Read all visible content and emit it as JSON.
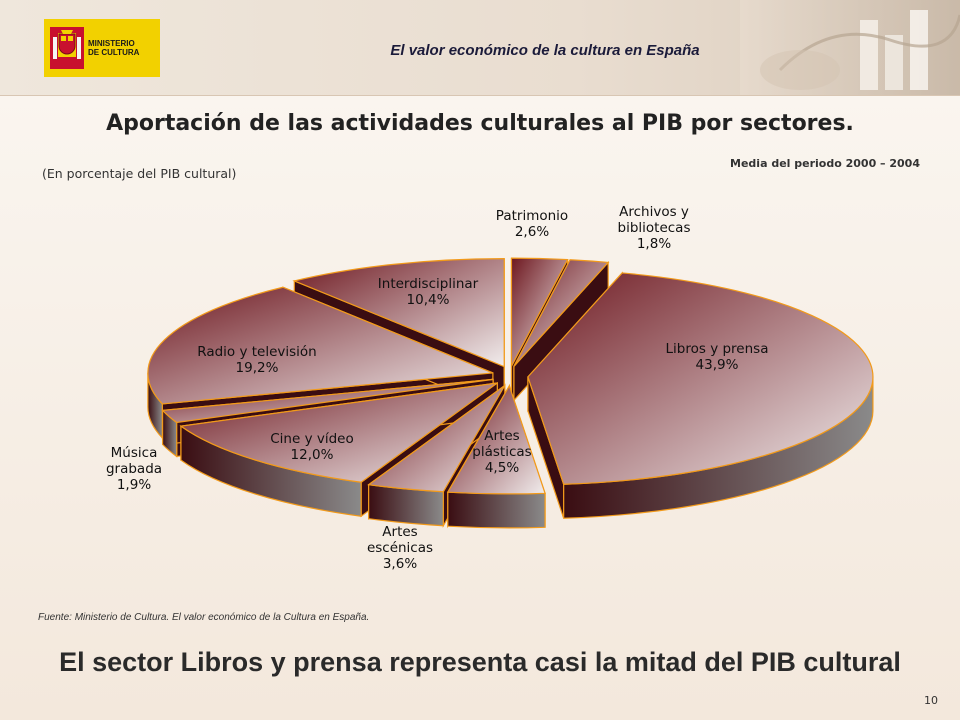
{
  "header": {
    "logo_lines": [
      "MINISTERIO",
      "DE CULTURA"
    ],
    "title": "El valor económico de la cultura  en España"
  },
  "slide": {
    "title": "Aportación de las actividades culturales al PIB por sectores.",
    "period": "Media del periodo 2000 – 2004",
    "unit_note": "(En porcentaje del PIB cultural)",
    "source": "Fuente: Ministerio de Cultura. El valor económico de la Cultura en España.",
    "footer": "El sector Libros y prensa representa casi la mitad del PIB cultural",
    "page_number": "10"
  },
  "colors": {
    "slice_dark": "#6e1820",
    "slice_light": "#f1eded",
    "side_dark": "#3a0d12",
    "side_light": "#8a8a8a",
    "outline": "#f29a1a"
  },
  "chart_data": {
    "type": "pie",
    "style": "3d-exploded",
    "title": "Aportación de las actividades culturales al PIB por sectores.",
    "unit": "%",
    "slices": [
      {
        "label": "Patrimonio",
        "value": 2.6,
        "label_text": "2,6%"
      },
      {
        "label": "Archivos y bibliotecas",
        "label_lines": [
          "Archivos y",
          "bibliotecas"
        ],
        "value": 1.8,
        "label_text": "1,8%"
      },
      {
        "label": "Libros y prensa",
        "value": 43.9,
        "label_text": "43,9%"
      },
      {
        "label": "Artes plásticas",
        "label_lines": [
          "Artes",
          "plásticas"
        ],
        "value": 4.5,
        "label_text": "4,5%"
      },
      {
        "label": "Artes escénicas",
        "label_lines": [
          "Artes",
          "escénicas"
        ],
        "value": 3.6,
        "label_text": "3,6%"
      },
      {
        "label": "Cine y vídeo",
        "value": 12.0,
        "label_text": "12,0%"
      },
      {
        "label": "Música grabada",
        "label_lines": [
          "Música",
          "grabada"
        ],
        "value": 1.9,
        "label_text": "1,9%"
      },
      {
        "label": "Radio y televisión",
        "value": 19.2,
        "label_text": "19,2%"
      },
      {
        "label": "Interdisciplinar",
        "value": 10.4,
        "label_text": "10,4%"
      }
    ]
  }
}
